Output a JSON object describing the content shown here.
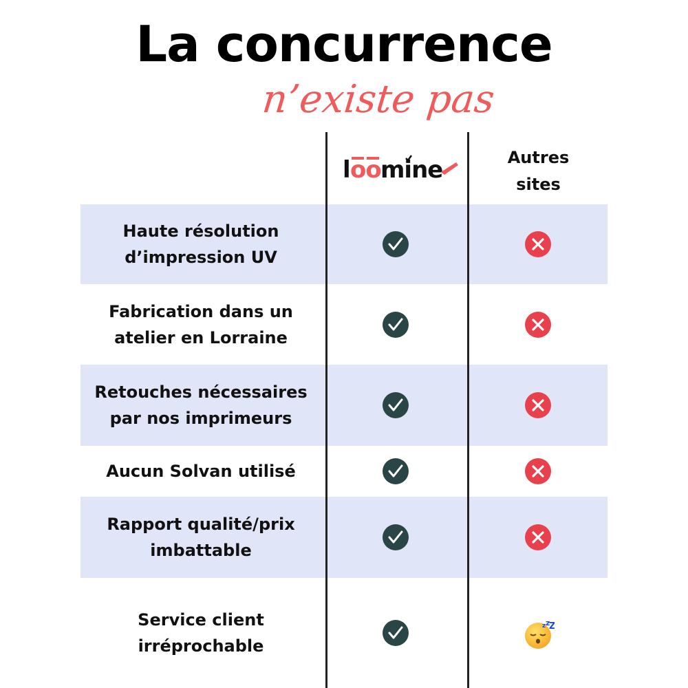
{
  "title": "La concurrence",
  "subtitle": "n’existe pas",
  "header": {
    "brand_logo": "loomine",
    "other_label_line1": "Autres",
    "other_label_line2": "sites"
  },
  "colors": {
    "check": "#2a4545",
    "cross": "#e8414d",
    "accent": "#f05a5a",
    "shade": "#e0e5f7"
  },
  "rows": [
    {
      "line1": "Haute résolution",
      "line2": "d’impression UV",
      "brand": "check-icon",
      "other": "cross-icon"
    },
    {
      "line1": "Fabrication dans un",
      "line2": "atelier en Lorraine",
      "brand": "check-icon",
      "other": "cross-icon"
    },
    {
      "line1": "Retouches nécessaires",
      "line2": "par nos imprimeurs",
      "brand": "check-icon",
      "other": "cross-icon"
    },
    {
      "line1": "Aucun Solvan utilisé",
      "line2": "",
      "brand": "check-icon",
      "other": "cross-icon"
    },
    {
      "line1": "Rapport qualité/prix",
      "line2": "imbattable",
      "brand": "check-icon",
      "other": "cross-icon"
    },
    {
      "line1": "Service client",
      "line2": "irréprochable",
      "brand": "check-icon",
      "other": "sleeping-face-emoji"
    }
  ]
}
